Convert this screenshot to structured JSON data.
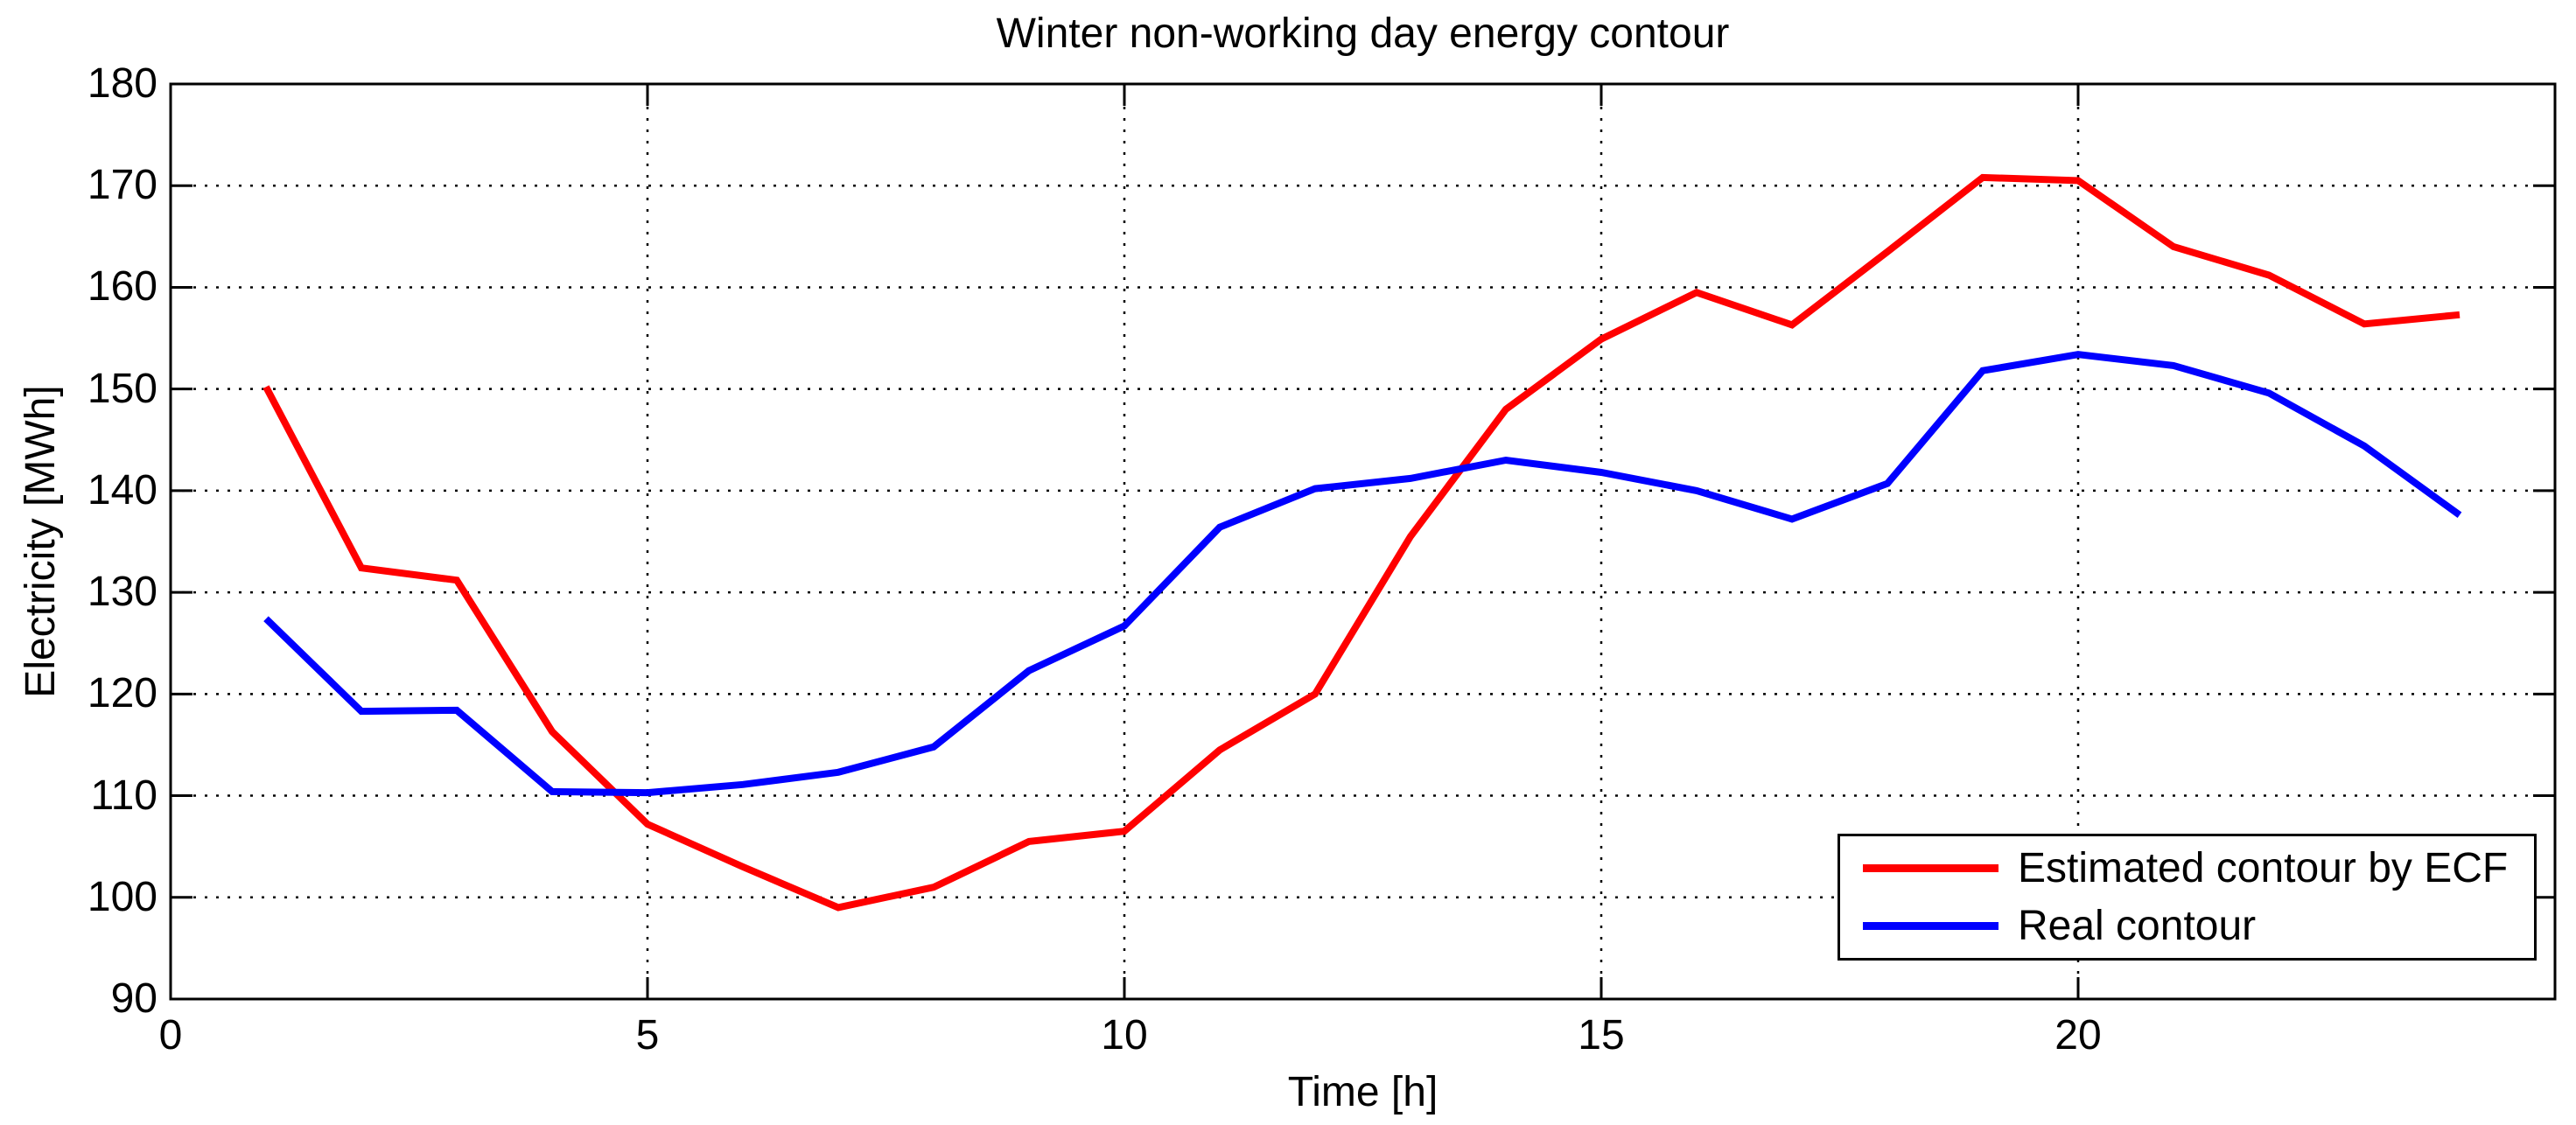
{
  "chart_data": {
    "type": "line",
    "title": "Winter non-working day energy contour",
    "xlabel": "Time [h]",
    "ylabel": "Electricity [MWh]",
    "xlim": [
      0,
      25
    ],
    "ylim": [
      90,
      180
    ],
    "x_ticks": [
      0,
      5,
      10,
      15,
      20
    ],
    "y_ticks": [
      90,
      100,
      110,
      120,
      130,
      140,
      150,
      160,
      170,
      180
    ],
    "grid": true,
    "grid_style": "dotted",
    "legend_position": "lower right",
    "x": [
      1,
      2,
      3,
      4,
      5,
      6,
      7,
      8,
      9,
      10,
      11,
      12,
      13,
      14,
      15,
      16,
      17,
      18,
      19,
      20,
      21,
      22,
      23,
      24
    ],
    "series": [
      {
        "name": "Estimated contour by ECF",
        "color": "#ff0000",
        "values": [
          150.2,
          132.4,
          131.2,
          116.3,
          107.2,
          103.0,
          99.0,
          101.0,
          105.5,
          106.5,
          114.5,
          120.0,
          135.5,
          148.0,
          154.9,
          159.5,
          156.3,
          163.5,
          170.8,
          170.5,
          164.0,
          161.2,
          156.4,
          157.3
        ]
      },
      {
        "name": "Real contour",
        "color": "#0000ff",
        "values": [
          127.4,
          118.3,
          118.4,
          110.4,
          110.3,
          111.1,
          112.3,
          114.8,
          122.3,
          126.7,
          136.4,
          140.2,
          141.2,
          143.0,
          141.8,
          140.0,
          137.2,
          140.7,
          151.8,
          153.4,
          152.3,
          149.6,
          144.4,
          137.6
        ]
      }
    ],
    "axis_color": "#000000",
    "background_color": "#ffffff"
  }
}
